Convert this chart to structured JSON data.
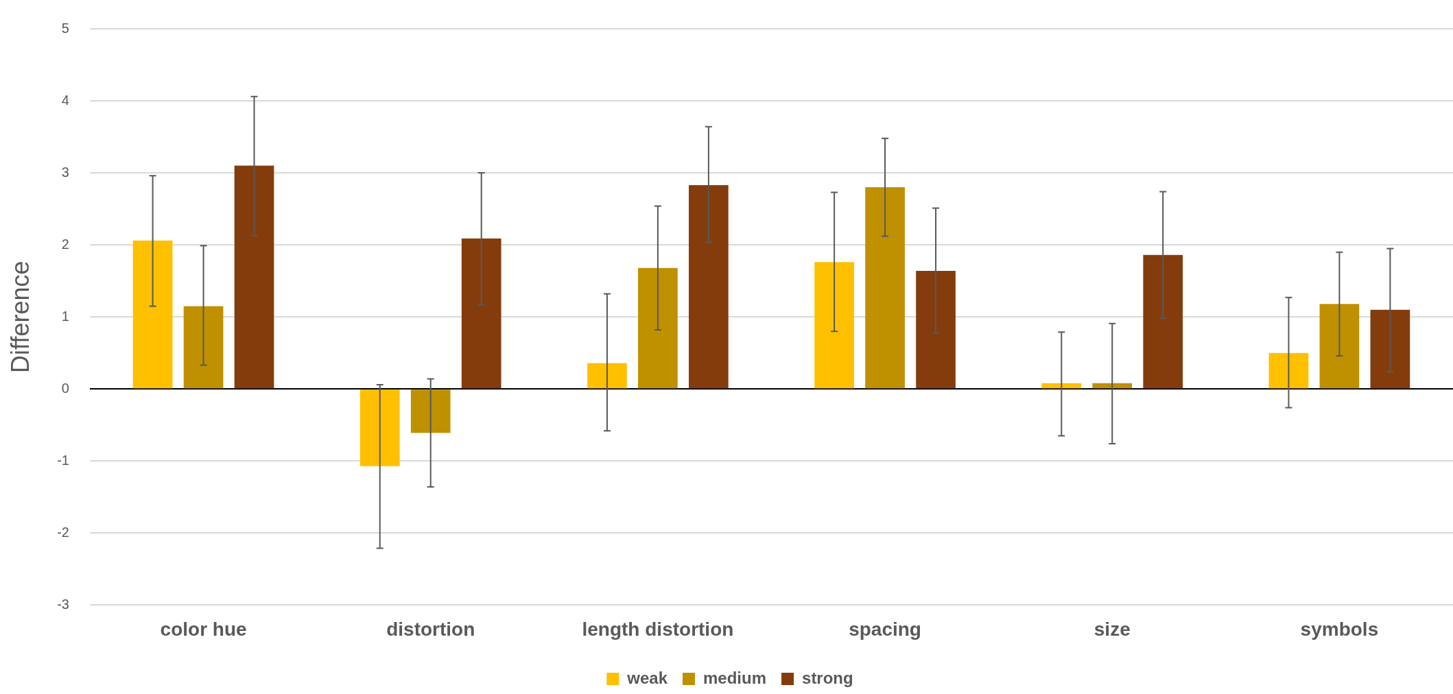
{
  "chart_data": {
    "type": "bar",
    "ylabel": "Difference",
    "categories": [
      "color hue",
      "distortion",
      "length distortion",
      "spacing",
      "size",
      "symbols"
    ],
    "series": [
      {
        "name": "weak",
        "color": "#ffc000",
        "values": [
          2.06,
          -1.07,
          0.36,
          1.76,
          0.08,
          0.5
        ],
        "errors": [
          [
            1.15,
            2.96
          ],
          [
            -2.21,
            0.06
          ],
          [
            -0.58,
            1.32
          ],
          [
            0.8,
            2.73
          ],
          [
            -0.65,
            0.79
          ],
          [
            -0.26,
            1.27
          ]
        ]
      },
      {
        "name": "medium",
        "color": "#bf9000",
        "values": [
          1.15,
          -0.61,
          1.68,
          2.8,
          0.08,
          1.18
        ],
        "errors": [
          [
            0.33,
            1.99
          ],
          [
            -1.36,
            0.14
          ],
          [
            0.82,
            2.54
          ],
          [
            2.12,
            3.48
          ],
          [
            -0.76,
            0.91
          ],
          [
            0.46,
            1.9
          ]
        ]
      },
      {
        "name": "strong",
        "color": "#843c0c",
        "values": [
          3.1,
          2.09,
          2.83,
          1.64,
          1.86,
          1.1
        ],
        "errors": [
          [
            2.13,
            4.06
          ],
          [
            1.17,
            3.0
          ],
          [
            2.04,
            3.64
          ],
          [
            0.78,
            2.51
          ],
          [
            0.98,
            2.74
          ],
          [
            0.24,
            1.95
          ]
        ]
      }
    ],
    "ylim": [
      -3,
      5
    ],
    "yticks": [
      -3,
      -2,
      -1,
      0,
      1,
      2,
      3,
      4,
      5
    ],
    "grid": "y",
    "legend": "bottom"
  }
}
